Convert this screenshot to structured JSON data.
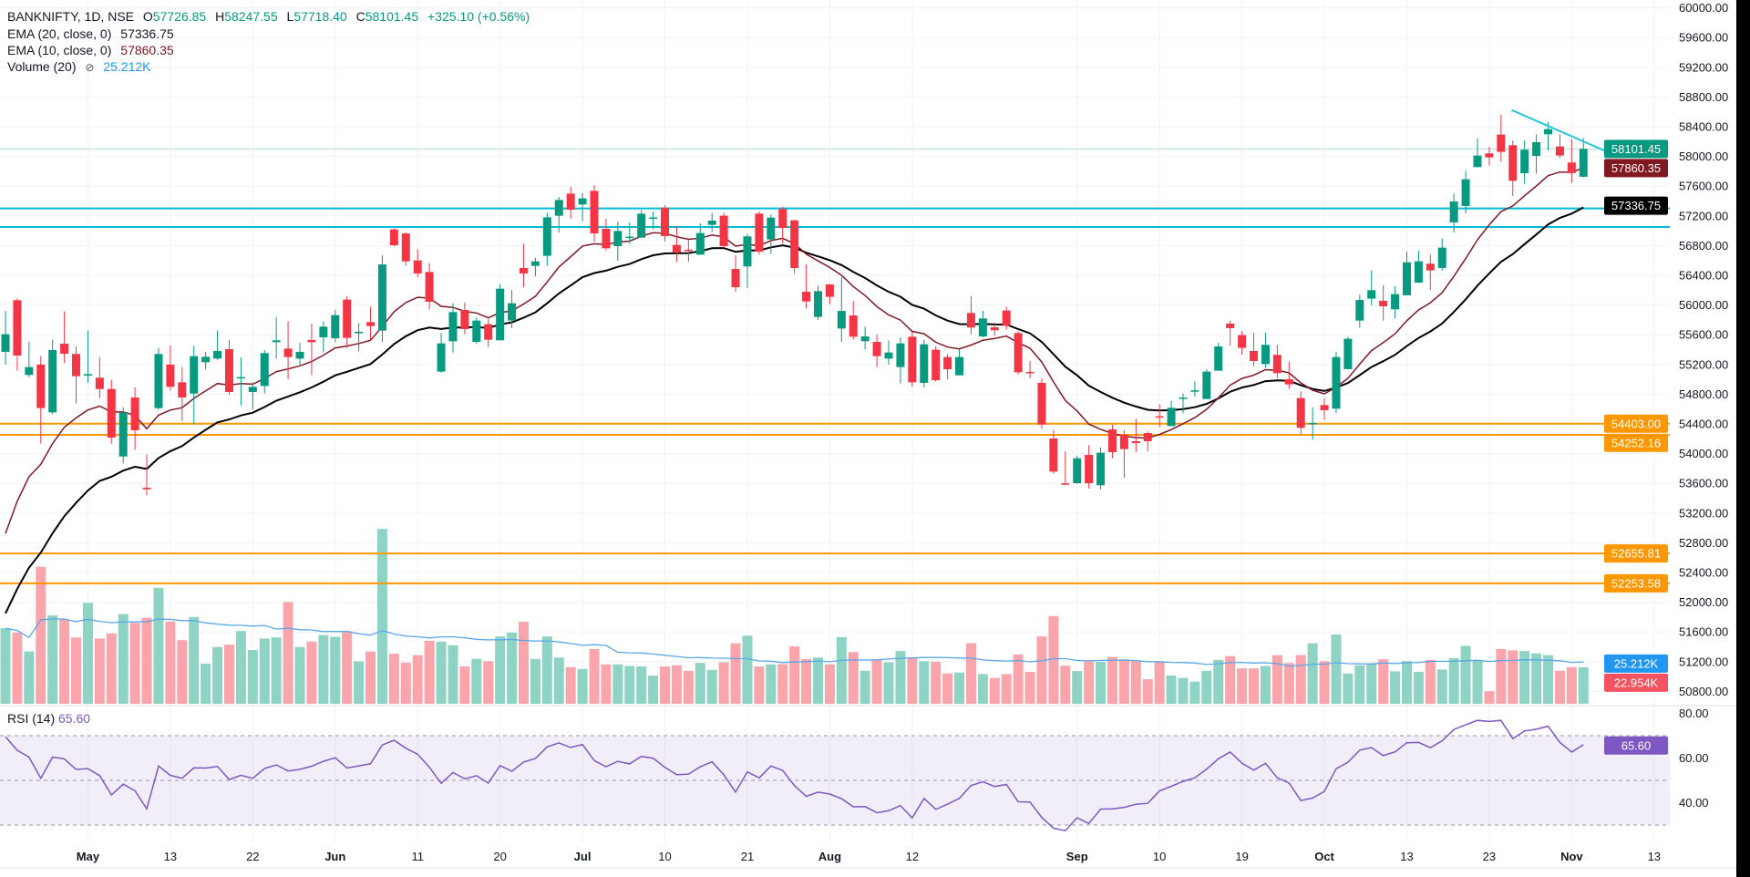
{
  "header": {
    "symbol_line": "BANKNIFTY, 1D, NSE",
    "o_label": "O",
    "o": "57726.85",
    "h_label": "H",
    "h": "58247.55",
    "l_label": "L",
    "l": "57718.40",
    "c_label": "C",
    "c": "58101.45",
    "change": "+325.10 (+0.56%)"
  },
  "indicators": {
    "ema20_label": "EMA (20, close, 0)",
    "ema20_value": "57336.75",
    "ema10_label": "EMA (10, close, 0)",
    "ema10_value": "57860.35",
    "volume_label": "Volume (20)",
    "volume_icon": "hidden-eye-icon",
    "volume_value": "25.212K",
    "rsi_label": "RSI (14)",
    "rsi_value": "65.60"
  },
  "colors": {
    "up": "#089981",
    "down": "#f23645",
    "vol_up": "#8fd3c5",
    "vol_down": "#f9a5ab",
    "ema20": "#000000",
    "ema10": "#801922",
    "vol_ma": "#5aa7e8",
    "rsi": "#7e57c2",
    "cyan": "#00bcd4",
    "orange": "#ff9800",
    "grid": "#f0f3fa"
  },
  "chart_data": {
    "type": "candlestick",
    "title": "BANKNIFTY, 1D, NSE",
    "ylim": [
      50800,
      60000
    ],
    "candles_ohlc": [
      [
        55370,
        55922,
        55198,
        55607
      ],
      [
        56065,
        56090,
        55116,
        55320
      ],
      [
        55059,
        55504,
        55030,
        55165
      ],
      [
        55198,
        55312,
        54134,
        54613
      ],
      [
        54555,
        55533,
        54530,
        55394
      ],
      [
        55480,
        55913,
        55218,
        55345
      ],
      [
        55341,
        55443,
        54674,
        55042
      ],
      [
        55050,
        55656,
        54952,
        55070
      ],
      [
        55022,
        55300,
        54748,
        54870
      ],
      [
        54870,
        54993,
        54134,
        54216
      ],
      [
        53962,
        54625,
        53868,
        54555
      ],
      [
        54756,
        54891,
        54052,
        54314
      ],
      [
        53540,
        53991,
        53439,
        53520
      ],
      [
        54613,
        55422,
        54590,
        55341
      ],
      [
        55198,
        55455,
        54850,
        54899
      ],
      [
        54960,
        55165,
        54441,
        54756
      ],
      [
        54809,
        55451,
        54400,
        55312
      ],
      [
        55230,
        55370,
        55132,
        55304
      ],
      [
        55280,
        55656,
        55260,
        55382
      ],
      [
        55406,
        55533,
        54789,
        54830
      ],
      [
        55020,
        55296,
        54645,
        55030
      ],
      [
        54830,
        54960,
        54592,
        54899
      ],
      [
        54911,
        55394,
        54809,
        55353
      ],
      [
        55500,
        55840,
        55279,
        55525
      ],
      [
        55414,
        55782,
        55000,
        55300
      ],
      [
        55279,
        55492,
        55198,
        55370
      ],
      [
        55530,
        55750,
        55055,
        55500
      ],
      [
        55566,
        55778,
        55361,
        55709
      ],
      [
        55553,
        55934,
        55500,
        55864
      ],
      [
        56073,
        56118,
        55422,
        55558
      ],
      [
        55620,
        55758,
        55382,
        55640
      ],
      [
        55770,
        55975,
        55525,
        55717
      ],
      [
        55656,
        56670,
        55504,
        56547
      ],
      [
        57018,
        57030,
        56790,
        56805
      ],
      [
        56964,
        56980,
        56527,
        56588
      ],
      [
        56600,
        56752,
        56376,
        56425
      ],
      [
        56445,
        56568,
        55942,
        56044
      ],
      [
        55104,
        55627,
        55090,
        55484
      ],
      [
        55512,
        56024,
        55361,
        55905
      ],
      [
        55934,
        56036,
        55607,
        55676
      ],
      [
        55504,
        55830,
        55480,
        55791
      ],
      [
        55742,
        55810,
        55435,
        55533
      ],
      [
        55525,
        56281,
        55525,
        56220
      ],
      [
        55791,
        56200,
        55688,
        56024
      ],
      [
        56498,
        56825,
        56240,
        56425
      ],
      [
        56527,
        56637,
        56384,
        56588
      ],
      [
        56662,
        57243,
        56527,
        57181
      ],
      [
        57202,
        57455,
        56977,
        57414
      ],
      [
        57500,
        57590,
        57161,
        57283
      ],
      [
        57353,
        57508,
        57128,
        57435
      ],
      [
        57537,
        57611,
        56854,
        56964
      ],
      [
        57026,
        57160,
        56730,
        56764
      ],
      [
        56793,
        57120,
        56596,
        56997
      ],
      [
        56906,
        57110,
        56825,
        56920
      ],
      [
        56907,
        57280,
        56907,
        57230
      ],
      [
        57170,
        57260,
        57020,
        57180
      ],
      [
        57312,
        57345,
        56855,
        56928
      ],
      [
        56809,
        57060,
        56580,
        56711
      ],
      [
        56745,
        56875,
        56580,
        56730
      ],
      [
        56678,
        57100,
        56678,
        56969
      ],
      [
        57079,
        57240,
        56980,
        57136
      ],
      [
        57202,
        57240,
        56770,
        56793
      ],
      [
        56486,
        56670,
        56179,
        56240
      ],
      [
        56519,
        56957,
        56228,
        56924
      ],
      [
        57230,
        57262,
        56680,
        56719
      ],
      [
        56883,
        57220,
        56690,
        57177
      ],
      [
        57292,
        57325,
        56825,
        57038
      ],
      [
        57140,
        57150,
        56416,
        56498
      ],
      [
        56179,
        56547,
        55954,
        56048
      ],
      [
        55840,
        56260,
        55800,
        56187
      ],
      [
        56277,
        56283,
        56010,
        56110
      ],
      [
        55684,
        56375,
        55504,
        55921
      ],
      [
        55860,
        56056,
        55537,
        55574
      ],
      [
        55513,
        55710,
        55402,
        55578
      ],
      [
        55504,
        55607,
        55165,
        55312
      ],
      [
        55279,
        55525,
        55198,
        55361
      ],
      [
        55165,
        55566,
        54944,
        55484
      ],
      [
        55574,
        55640,
        54900,
        54960
      ],
      [
        54952,
        55533,
        54890,
        55472
      ],
      [
        55398,
        55443,
        54972,
        54989
      ],
      [
        55300,
        55341,
        55000,
        55136
      ],
      [
        55054,
        55402,
        55054,
        55300
      ],
      [
        55893,
        56118,
        55607,
        55697
      ],
      [
        55578,
        55922,
        55566,
        55819
      ],
      [
        55700,
        55762,
        55586,
        55660
      ],
      [
        55926,
        55975,
        55668,
        55721
      ],
      [
        55623,
        55648,
        55067,
        55095
      ],
      [
        55100,
        55246,
        55013,
        55090
      ],
      [
        54952,
        55013,
        54339,
        54392
      ],
      [
        54204,
        54318,
        53733,
        53758
      ],
      [
        53600,
        54032,
        53582,
        53595
      ],
      [
        53602,
        53971,
        53594,
        53938
      ],
      [
        53983,
        54114,
        53529,
        53602
      ],
      [
        53574,
        54085,
        53520,
        54012
      ],
      [
        54326,
        54388,
        53938,
        54020
      ],
      [
        54257,
        54318,
        53676,
        54061
      ],
      [
        54167,
        54470,
        54020,
        54142
      ],
      [
        54277,
        54297,
        54032,
        54167
      ],
      [
        54503,
        54666,
        54359,
        54490
      ],
      [
        54371,
        54707,
        54371,
        54617
      ],
      [
        54740,
        54809,
        54543,
        54755
      ],
      [
        54848,
        54973,
        54768,
        54852
      ],
      [
        54735,
        55137,
        54735,
        55104
      ],
      [
        55116,
        55492,
        55116,
        55443
      ],
      [
        55750,
        55791,
        55451,
        55689
      ],
      [
        55595,
        55648,
        55329,
        55423
      ],
      [
        55382,
        55627,
        55177,
        55247
      ],
      [
        55206,
        55627,
        55157,
        55464
      ],
      [
        55329,
        55464,
        55014,
        55083
      ],
      [
        55002,
        55239,
        54871,
        54932
      ],
      [
        54748,
        54838,
        54257,
        54347
      ],
      [
        54400,
        54625,
        54184,
        54413
      ],
      [
        54654,
        54748,
        54454,
        54585
      ],
      [
        54605,
        55370,
        54543,
        55300
      ],
      [
        55137,
        55574,
        55137,
        55546
      ],
      [
        55791,
        56139,
        55697,
        56069
      ],
      [
        56086,
        56466,
        55996,
        56200
      ],
      [
        56057,
        56269,
        55791,
        55983
      ],
      [
        55942,
        56253,
        55820,
        56147
      ],
      [
        56131,
        56723,
        56131,
        56576
      ],
      [
        56302,
        56732,
        56294,
        56589
      ],
      [
        56556,
        56678,
        56200,
        56466
      ],
      [
        56499,
        56896,
        56466,
        56773
      ],
      [
        57112,
        57501,
        56977,
        57394
      ],
      [
        57333,
        57807,
        57235,
        57693
      ],
      [
        57856,
        58245,
        57856,
        58012
      ],
      [
        58041,
        58131,
        57877,
        57987
      ],
      [
        58294,
        58560,
        57930,
        58061
      ],
      [
        58151,
        58216,
        57468,
        57672
      ],
      [
        57775,
        58216,
        57631,
        58090
      ],
      [
        58007,
        58298,
        57767,
        58192
      ],
      [
        58298,
        58462,
        58082,
        58368
      ],
      [
        58135,
        58298,
        57979,
        58012
      ],
      [
        57918,
        58233,
        57644,
        57776
      ],
      [
        57726.85,
        58247.55,
        57718.4,
        58101.45
      ]
    ],
    "volume_k": [
      47.3,
      44.6,
      32.8,
      85.9,
      55.4,
      52.9,
      41.6,
      63.3,
      40.9,
      44.1,
      56.3,
      50.7,
      53.9,
      72.7,
      51.6,
      39.9,
      54.4,
      25.2,
      35.6,
      37.1,
      45.6,
      33.7,
      40.9,
      41.6,
      63.8,
      35.6,
      39,
      43.1,
      42,
      45.4,
      26.6,
      32.8,
      109.6,
      31.4,
      25.8,
      30.5,
      39.4,
      39,
      36.7,
      23.4,
      28.2,
      26.7,
      42.2,
      44.6,
      51.4,
      28.1,
      42.2,
      29,
      23,
      21.8,
      34.3,
      24.7,
      24.7,
      23.7,
      23.4,
      17.7,
      23.4,
      24.1,
      20.7,
      25.6,
      21.1,
      26,
      37.9,
      42.7,
      23.4,
      24.7,
      24.9,
      36,
      28.1,
      29,
      24.7,
      41.8,
      32.4,
      20.7,
      27.5,
      26,
      33.1,
      28.6,
      26.7,
      26.4,
      19,
      19.6,
      38,
      18.6,
      16.2,
      18.6,
      30.9,
      20,
      42.2,
      55,
      23.9,
      20.5,
      26.6,
      26.2,
      29.4,
      27.9,
      26.6,
      15.4,
      26.6,
      17.7,
      16.2,
      13.9,
      20.7,
      27.5,
      29.9,
      22.2,
      22.2,
      23.7,
      30.5,
      25.6,
      30.5,
      37.9,
      26.7,
      43.5,
      19,
      24.1,
      25.2,
      27.9,
      20.3,
      26.7,
      20,
      27.5,
      21.5,
      28.6,
      36.3,
      27.5,
      7.9,
      34.3,
      33.5,
      33.1,
      31.6,
      30.5,
      20.7,
      23,
      22.954
    ],
    "ema_seed": {
      "ema10": 52328,
      "ema20": 51454
    },
    "rsi_seed": {
      "avg_gain": 160,
      "avg_loss": 70
    },
    "volume_ma_period": 20,
    "price_ticks": [
      "60000.00",
      "59600.00",
      "59200.00",
      "58800.00",
      "58400.00",
      "58000.00",
      "57600.00",
      "57200.00",
      "56800.00",
      "56400.00",
      "56000.00",
      "55600.00",
      "55200.00",
      "54800.00",
      "54400.00",
      "54000.00",
      "53600.00",
      "53200.00",
      "52800.00",
      "52400.00",
      "52000.00",
      "51600.00",
      "51200.00",
      "50800.00"
    ],
    "rsi_ticks": [
      "80.00",
      "60.00",
      "40.00"
    ],
    "rsi_bands": [
      70,
      50,
      30
    ],
    "date_labels": [
      {
        "label": "May",
        "index": 7,
        "bold": true
      },
      {
        "label": "13",
        "index": 14,
        "bold": false
      },
      {
        "label": "22",
        "index": 21,
        "bold": false
      },
      {
        "label": "Jun",
        "index": 28,
        "bold": true
      },
      {
        "label": "11",
        "index": 35,
        "bold": false
      },
      {
        "label": "20",
        "index": 42,
        "bold": false
      },
      {
        "label": "Jul",
        "index": 49,
        "bold": true
      },
      {
        "label": "10",
        "index": 56,
        "bold": false
      },
      {
        "label": "21",
        "index": 63,
        "bold": false
      },
      {
        "label": "Aug",
        "index": 70,
        "bold": true
      },
      {
        "label": "12",
        "index": 77,
        "bold": false
      },
      {
        "label": "Sep",
        "index": 91,
        "bold": true
      },
      {
        "label": "10",
        "index": 98,
        "bold": false
      },
      {
        "label": "19",
        "index": 105,
        "bold": false
      },
      {
        "label": "Oct",
        "index": 112,
        "bold": true
      },
      {
        "label": "13",
        "index": 119,
        "bold": false
      },
      {
        "label": "23",
        "index": 126,
        "bold": false
      },
      {
        "label": "Nov",
        "index": 133,
        "bold": true
      },
      {
        "label": "13",
        "index": 140,
        "bold": false
      }
    ],
    "horizontal_lines": [
      {
        "price": 57300,
        "color": "#00bcd4"
      },
      {
        "price": 57050,
        "color": "#00bcd4"
      },
      {
        "price": 54403.0,
        "color": "#ff9800"
      },
      {
        "price": 54252.16,
        "color": "#ff9800"
      },
      {
        "price": 52655.81,
        "color": "#ff9800"
      },
      {
        "price": 52253.58,
        "color": "#ff9800"
      }
    ],
    "trendline": {
      "from": [
        127.9,
        58625
      ],
      "to": [
        136.9,
        58000
      ],
      "color": "#26c6da"
    },
    "price_labels": [
      {
        "text": "58101.45",
        "value": 58101.45,
        "bg": "#089981",
        "fg": "#ffffff"
      },
      {
        "text": "57860.35",
        "value": 57860.35,
        "bg": "#801922",
        "fg": "#ffffff"
      },
      {
        "text": "57336.75",
        "value": 57336.75,
        "bg": "#000000",
        "fg": "#ffffff"
      },
      {
        "text": "54403.00",
        "value": 54403.0,
        "bg": "#ff9800",
        "fg": "#ffffff"
      },
      {
        "text": "54252.16",
        "value": 54252.16,
        "bg": "#ff9800",
        "fg": "#ffffff"
      },
      {
        "text": "52655.81",
        "value": 52655.81,
        "bg": "#ff9800",
        "fg": "#ffffff"
      },
      {
        "text": "52253.58",
        "value": 52253.58,
        "bg": "#ff9800",
        "fg": "#ffffff"
      }
    ],
    "volume_labels": [
      {
        "text": "25.212K",
        "value": 25.212,
        "bg": "#2196f3",
        "fg": "#ffffff"
      },
      {
        "text": "22.954K",
        "value": 22.954,
        "bg": "#f7525f",
        "fg": "#ffffff"
      }
    ],
    "rsi_label": {
      "text": "65.60",
      "value": 65.6,
      "bg": "#7e57c2",
      "fg": "#ffffff"
    }
  }
}
